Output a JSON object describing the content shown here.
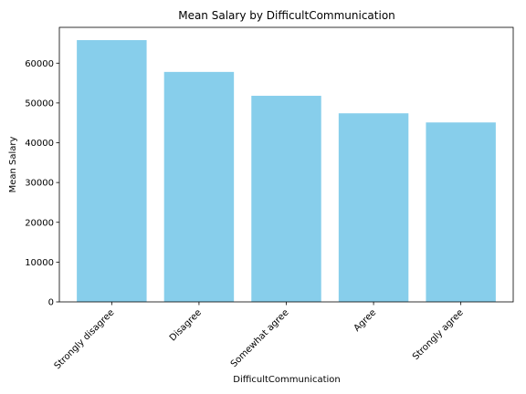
{
  "chart_data": {
    "type": "bar",
    "title": "Mean Salary by DifficultCommunication",
    "xlabel": "DifficultCommunication",
    "ylabel": "Mean Salary",
    "categories": [
      "Strongly disagree",
      "Disagree",
      "Somewhat agree",
      "Agree",
      "Strongly agree"
    ],
    "values": [
      65800,
      57800,
      51800,
      47400,
      45100
    ],
    "ylim": [
      0,
      69000
    ],
    "yticks": [
      0,
      10000,
      20000,
      30000,
      40000,
      50000,
      60000
    ],
    "grid": false,
    "bar_color": "#87CEEB"
  }
}
